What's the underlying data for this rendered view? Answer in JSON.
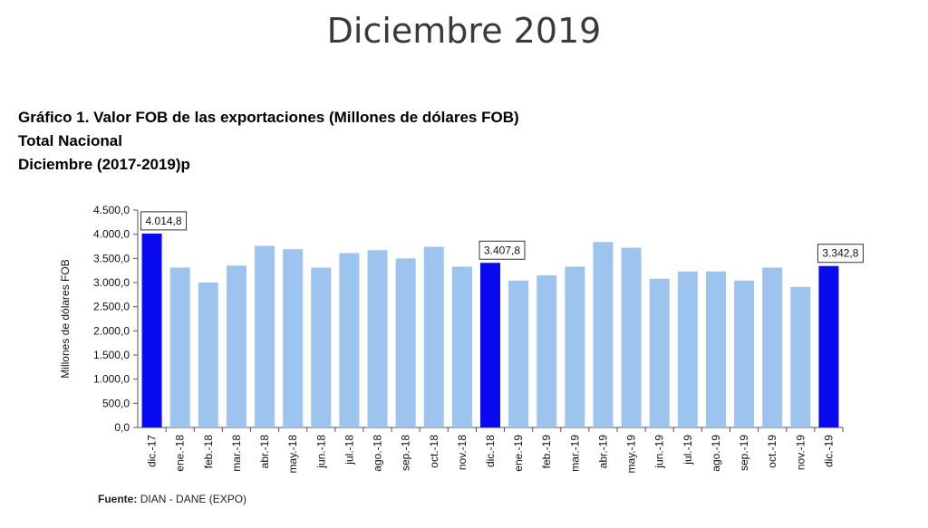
{
  "page": {
    "heading": "Diciembre 2019",
    "footer_label": "Fuente:",
    "footer_value": "DIAN - DANE (EXPO)"
  },
  "chart_data": {
    "type": "bar",
    "title": "Gráfico 1. Valor FOB de las exportaciones (Millones de dólares FOB)",
    "subtitle1": "Total Nacional",
    "subtitle2": "Diciembre (2017-2019)p",
    "ylabel": "Millones de dólares FOB",
    "ylim": [
      0,
      4500
    ],
    "yticks": [
      "0,0",
      "500,0",
      "1.000,0",
      "1.500,0",
      "2.000,0",
      "2.500,0",
      "3.000,0",
      "3.500,0",
      "4.000,0",
      "4.500,0"
    ],
    "categories": [
      "dic.-17",
      "ene.-18",
      "feb.-18",
      "mar.-18",
      "abr.-18",
      "may.-18",
      "jun.-18",
      "jul.-18",
      "ago.-18",
      "sep.-18",
      "oct.-18",
      "nov.-18",
      "dic.-18",
      "ene.-19",
      "feb.-19",
      "mar.-19",
      "abr.-19",
      "may.-19",
      "jun.-19",
      "jul.-19",
      "ago.-19",
      "sep.-19",
      "oct.-19",
      "nov.-19",
      "dic.-19"
    ],
    "values": [
      4014.8,
      3310,
      3000,
      3350,
      3760,
      3690,
      3310,
      3610,
      3670,
      3500,
      3740,
      3330,
      3407.8,
      3040,
      3150,
      3330,
      3840,
      3720,
      3080,
      3230,
      3230,
      3040,
      3310,
      2910,
      3342.8
    ],
    "highlight": [
      0,
      12,
      24
    ],
    "data_labels": [
      {
        "index": 0,
        "text": "4.014,8"
      },
      {
        "index": 12,
        "text": "3.407,8"
      },
      {
        "index": 24,
        "text": "3.342,8"
      }
    ],
    "colors": {
      "normal": "#9dc3ef",
      "highlight": "#0a0af0"
    },
    "grid": false,
    "legend": "none"
  }
}
